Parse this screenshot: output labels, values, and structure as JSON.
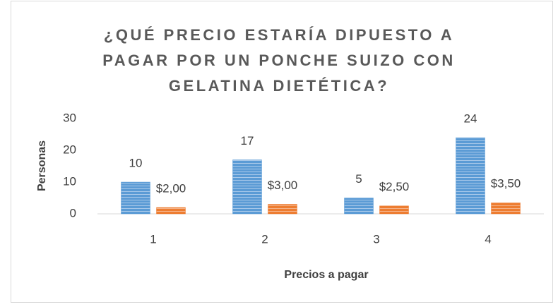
{
  "chart_data": {
    "type": "bar",
    "title": "¿QUÉ PRECIO ESTARÍA DIPUESTO A PAGAR POR UN PONCHE SUIZO CON GELATINA DIETÉTICA?",
    "x_label": "Precios a pagar",
    "y_label": "Personas",
    "categories": [
      "1",
      "2",
      "3",
      "4"
    ],
    "series": [
      {
        "color": "#5b9bd5",
        "values": [
          10,
          17,
          5,
          24
        ]
      },
      {
        "color": "#ed7d31",
        "values": [
          2,
          3,
          2.5,
          3.5
        ],
        "value_labels": [
          "$2,00",
          "$3,00",
          "$2,50",
          "$3,50"
        ]
      }
    ],
    "ylim": [
      0,
      30
    ],
    "yticks": [
      0,
      10,
      20,
      30
    ],
    "grid": false
  }
}
